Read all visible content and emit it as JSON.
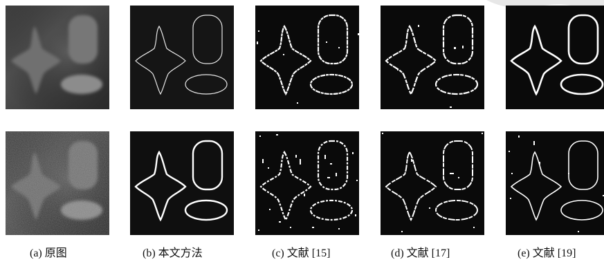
{
  "captions": [
    "(a) 原图",
    "(b) 本文方法",
    "(c) 文献 [15]",
    "(d) 文献 [17]",
    "(e) 文献 [19]"
  ]
}
